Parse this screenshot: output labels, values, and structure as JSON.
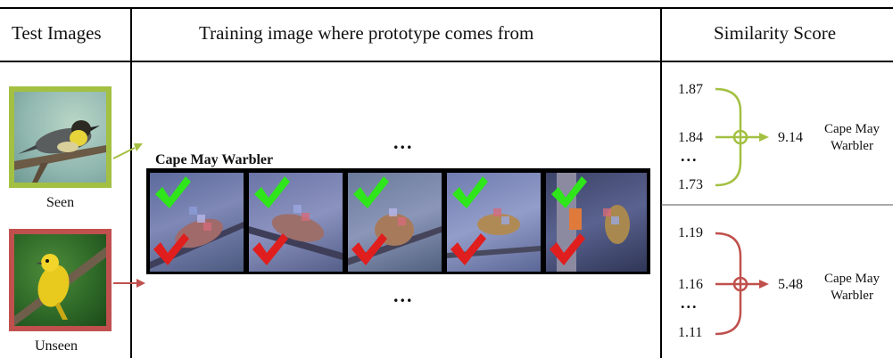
{
  "header": {
    "col1": "Test Images",
    "col2": "Training image where prototype comes from",
    "col3": "Similarity Score"
  },
  "test_images": {
    "seen_caption": "Seen",
    "unseen_caption": "Unseen",
    "seen_border": "#a3c042",
    "unseen_border": "#c0504d"
  },
  "prototypes": {
    "ellipsis_top": "...",
    "ellipsis_bottom": "...",
    "box_label": "Cape May Warbler",
    "check_colors": {
      "good": "#2ee61a",
      "bad": "#e01e1e"
    }
  },
  "scores": {
    "seen": {
      "values": [
        "1.87",
        "1.84",
        "1.73"
      ],
      "ellipsis": "...",
      "total": "9.14",
      "class_name": "Cape May Warbler",
      "color": "#a3c042"
    },
    "unseen": {
      "values": [
        "1.19",
        "1.16",
        "1.11"
      ],
      "ellipsis": "...",
      "total": "5.48",
      "class_name": "Cape May Warbler",
      "color": "#c0504d"
    }
  }
}
